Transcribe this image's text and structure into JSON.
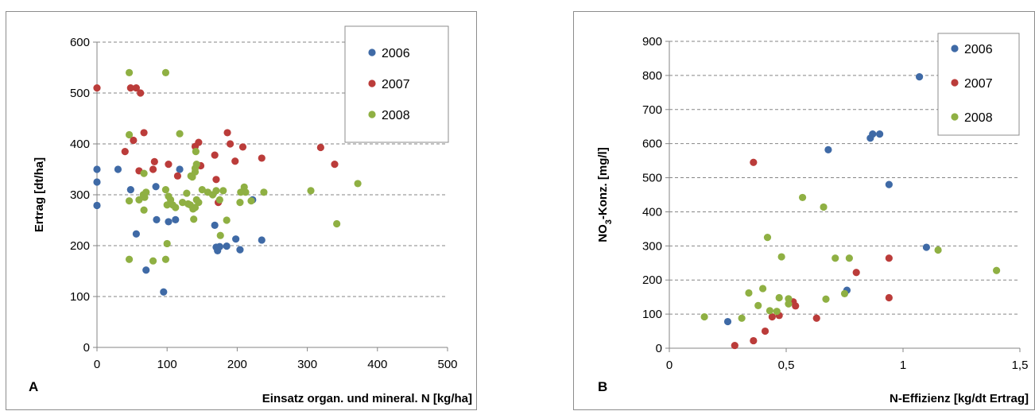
{
  "chart_data": [
    {
      "type": "scatter",
      "panel_label": "A",
      "xlabel": "Einsatz organ. und mineral. N [kg/ha]",
      "ylabel": "Ertrag [dt/ha]",
      "xlim": [
        0,
        500
      ],
      "ylim": [
        0,
        600
      ],
      "x_ticks": [
        "0",
        "100",
        "200",
        "300",
        "400",
        "500"
      ],
      "y_ticks": [
        "0",
        "100",
        "200",
        "300",
        "400",
        "500",
        "600"
      ],
      "grid": "horizontal dashed",
      "legend_position": "top-right",
      "series": [
        {
          "name": "2006",
          "color": "#3f6aa6",
          "points": [
            [
              0,
              350
            ],
            [
              0,
              325
            ],
            [
              0,
              279
            ],
            [
              30,
              350
            ],
            [
              48,
              310
            ],
            [
              56,
              223
            ],
            [
              70,
              152
            ],
            [
              84,
              316
            ],
            [
              85,
              251
            ],
            [
              95,
              109
            ],
            [
              102,
              247
            ],
            [
              112,
              251
            ],
            [
              118,
              350
            ],
            [
              168,
              240
            ],
            [
              170,
              197
            ],
            [
              172,
              190
            ],
            [
              175,
              198
            ],
            [
              185,
              199
            ],
            [
              198,
              213
            ],
            [
              204,
              192
            ],
            [
              222,
              290
            ],
            [
              235,
              211
            ]
          ]
        },
        {
          "name": "2007",
          "color": "#bb3c3a",
          "points": [
            [
              0,
              510
            ],
            [
              40,
              385
            ],
            [
              48,
              510
            ],
            [
              52,
              407
            ],
            [
              56,
              510
            ],
            [
              60,
              347
            ],
            [
              62,
              500
            ],
            [
              67,
              422
            ],
            [
              80,
              350
            ],
            [
              82,
              365
            ],
            [
              102,
              360
            ],
            [
              115,
              337
            ],
            [
              140,
              395
            ],
            [
              145,
              403
            ],
            [
              148,
              357
            ],
            [
              168,
              378
            ],
            [
              170,
              330
            ],
            [
              173,
              285
            ],
            [
              186,
              422
            ],
            [
              190,
              400
            ],
            [
              197,
              366
            ],
            [
              208,
              394
            ],
            [
              235,
              372
            ],
            [
              319,
              393
            ],
            [
              339,
              360
            ]
          ]
        },
        {
          "name": "2008",
          "color": "#8fb043",
          "points": [
            [
              46,
              540
            ],
            [
              46,
              418
            ],
            [
              46,
              288
            ],
            [
              46,
              173
            ],
            [
              60,
              290
            ],
            [
              66,
              300
            ],
            [
              67,
              342
            ],
            [
              67,
              270
            ],
            [
              68,
              295
            ],
            [
              70,
              305
            ],
            [
              80,
              170
            ],
            [
              98,
              540
            ],
            [
              98,
              310
            ],
            [
              98,
              173
            ],
            [
              100,
              280
            ],
            [
              100,
              204
            ],
            [
              102,
              297
            ],
            [
              105,
              290
            ],
            [
              108,
              280
            ],
            [
              112,
              275
            ],
            [
              118,
              420
            ],
            [
              122,
              285
            ],
            [
              128,
              303
            ],
            [
              130,
              282
            ],
            [
              133,
              280
            ],
            [
              134,
              337
            ],
            [
              136,
              335
            ],
            [
              137,
              272
            ],
            [
              138,
              252
            ],
            [
              140,
              345
            ],
            [
              140,
              352
            ],
            [
              140,
              275
            ],
            [
              141,
              385
            ],
            [
              142,
              360
            ],
            [
              142,
              290
            ],
            [
              145,
              285
            ],
            [
              150,
              310
            ],
            [
              158,
              305
            ],
            [
              165,
              300
            ],
            [
              170,
              308
            ],
            [
              175,
              290
            ],
            [
              176,
              220
            ],
            [
              180,
              308
            ],
            [
              185,
              250
            ],
            [
              204,
              285
            ],
            [
              205,
              305
            ],
            [
              210,
              315
            ],
            [
              212,
              305
            ],
            [
              220,
              288
            ],
            [
              238,
              305
            ],
            [
              305,
              308
            ],
            [
              372,
              322
            ],
            [
              342,
              243
            ]
          ]
        }
      ]
    },
    {
      "type": "scatter",
      "panel_label": "B",
      "xlabel": "N-Effizienz [kg/dt Ertrag]",
      "ylabel_main": "NO",
      "ylabel_sub": "3",
      "ylabel_rest": "-Konz. [mg/l]",
      "xlim": [
        0,
        1.5
      ],
      "ylim": [
        0,
        900
      ],
      "x_ticks": [
        "0",
        "0,5",
        "1",
        "1,5"
      ],
      "y_ticks": [
        "0",
        "100",
        "200",
        "300",
        "400",
        "500",
        "600",
        "700",
        "800",
        "900"
      ],
      "grid": "horizontal dashed",
      "legend_position": "top-right",
      "series": [
        {
          "name": "2006",
          "color": "#3f6aa6",
          "points": [
            [
              0.25,
              78
            ],
            [
              0.68,
              582
            ],
            [
              0.76,
              170
            ],
            [
              0.86,
              616
            ],
            [
              0.87,
              628
            ],
            [
              0.9,
              628
            ],
            [
              0.94,
              480
            ],
            [
              1.07,
              796
            ],
            [
              1.1,
              296
            ]
          ]
        },
        {
          "name": "2007",
          "color": "#bb3c3a",
          "points": [
            [
              0.28,
              8
            ],
            [
              0.36,
              22
            ],
            [
              0.36,
              545
            ],
            [
              0.41,
              50
            ],
            [
              0.44,
              92
            ],
            [
              0.47,
              96
            ],
            [
              0.53,
              136
            ],
            [
              0.54,
              124
            ],
            [
              0.63,
              88
            ],
            [
              0.8,
              222
            ],
            [
              0.94,
              264
            ],
            [
              0.94,
              148
            ]
          ]
        },
        {
          "name": "2008",
          "color": "#8fb043",
          "points": [
            [
              0.15,
              92
            ],
            [
              0.31,
              88
            ],
            [
              0.34,
              162
            ],
            [
              0.38,
              125
            ],
            [
              0.4,
              175
            ],
            [
              0.42,
              325
            ],
            [
              0.43,
              110
            ],
            [
              0.46,
              108
            ],
            [
              0.47,
              148
            ],
            [
              0.48,
              268
            ],
            [
              0.51,
              145
            ],
            [
              0.51,
              130
            ],
            [
              0.57,
              442
            ],
            [
              0.66,
              414
            ],
            [
              0.67,
              144
            ],
            [
              0.71,
              264
            ],
            [
              0.75,
              160
            ],
            [
              0.77,
              264
            ],
            [
              1.15,
              288
            ],
            [
              1.4,
              228
            ]
          ]
        }
      ]
    }
  ]
}
